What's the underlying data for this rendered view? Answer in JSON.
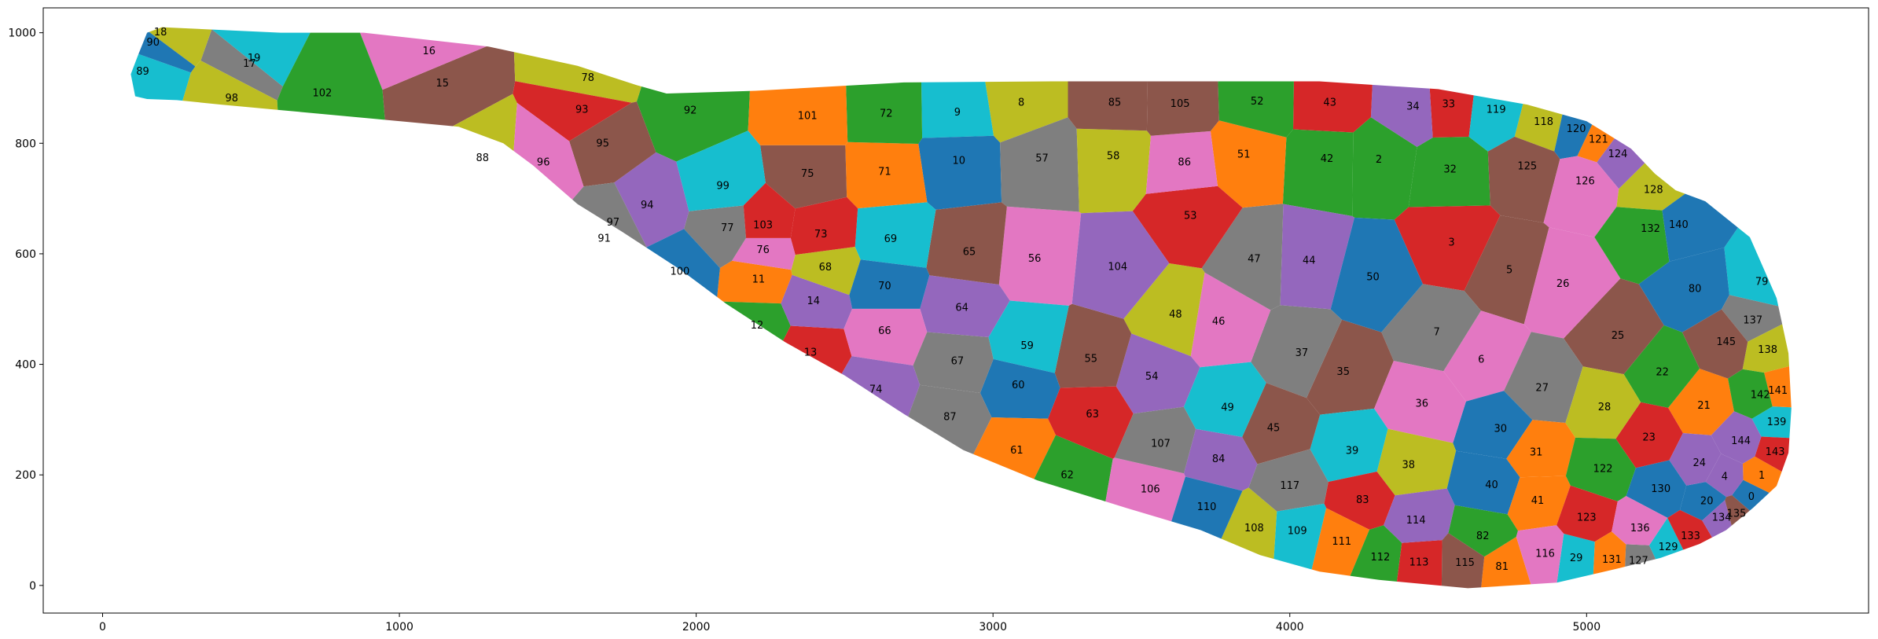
{
  "chart_data": {
    "type": "segmentation",
    "title": "",
    "xlabel": "",
    "ylabel": "",
    "xlim": [
      -200,
      5950
    ],
    "ylim": [
      -50,
      1045
    ],
    "xticks": [
      0,
      1000,
      2000,
      3000,
      4000,
      5000
    ],
    "yticks": [
      0,
      200,
      400,
      600,
      800,
      1000
    ],
    "grid": false,
    "legend": "none",
    "palette": [
      "#1f77b4",
      "#ff7f0e",
      "#2ca02c",
      "#d62728",
      "#9467bd",
      "#8c564b",
      "#e377c2",
      "#7f7f7f",
      "#bcbd22",
      "#17becf"
    ],
    "segments": [
      {
        "label": "0",
        "x": 5555,
        "y": 160
      },
      {
        "label": "1",
        "x": 5590,
        "y": 198
      },
      {
        "label": "2",
        "x": 4300,
        "y": 770
      },
      {
        "label": "3",
        "x": 4545,
        "y": 620
      },
      {
        "label": "4",
        "x": 5465,
        "y": 196
      },
      {
        "label": "5",
        "x": 4740,
        "y": 570
      },
      {
        "label": "6",
        "x": 4645,
        "y": 408
      },
      {
        "label": "7",
        "x": 4495,
        "y": 458
      },
      {
        "label": "8",
        "x": 3095,
        "y": 873
      },
      {
        "label": "9",
        "x": 2880,
        "y": 855
      },
      {
        "label": "10",
        "x": 2885,
        "y": 768
      },
      {
        "label": "11",
        "x": 2210,
        "y": 553
      },
      {
        "label": "12",
        "x": 2205,
        "y": 470
      },
      {
        "label": "13",
        "x": 2385,
        "y": 421
      },
      {
        "label": "14",
        "x": 2395,
        "y": 514
      },
      {
        "label": "15",
        "x": 1145,
        "y": 908
      },
      {
        "label": "16",
        "x": 1100,
        "y": 966
      },
      {
        "label": "17",
        "x": 495,
        "y": 943
      },
      {
        "label": "18",
        "x": 195,
        "y": 1000
      },
      {
        "label": "19",
        "x": 510,
        "y": 953
      },
      {
        "label": "20",
        "x": 5405,
        "y": 152
      },
      {
        "label": "21",
        "x": 5395,
        "y": 325
      },
      {
        "label": "22",
        "x": 5255,
        "y": 385
      },
      {
        "label": "23",
        "x": 5210,
        "y": 267
      },
      {
        "label": "24",
        "x": 5380,
        "y": 221
      },
      {
        "label": "25",
        "x": 5105,
        "y": 451
      },
      {
        "label": "26",
        "x": 4920,
        "y": 545
      },
      {
        "label": "27",
        "x": 4850,
        "y": 357
      },
      {
        "label": "28",
        "x": 5060,
        "y": 322
      },
      {
        "label": "29",
        "x": 4965,
        "y": 49
      },
      {
        "label": "30",
        "x": 4710,
        "y": 283
      },
      {
        "label": "31",
        "x": 4830,
        "y": 240
      },
      {
        "label": "32",
        "x": 4540,
        "y": 752
      },
      {
        "label": "33",
        "x": 4535,
        "y": 870
      },
      {
        "label": "34",
        "x": 4415,
        "y": 866
      },
      {
        "label": "35",
        "x": 4180,
        "y": 386
      },
      {
        "label": "36",
        "x": 4445,
        "y": 328
      },
      {
        "label": "37",
        "x": 4040,
        "y": 420
      },
      {
        "label": "38",
        "x": 4400,
        "y": 217
      },
      {
        "label": "39",
        "x": 4210,
        "y": 243
      },
      {
        "label": "40",
        "x": 4680,
        "y": 181
      },
      {
        "label": "41",
        "x": 4835,
        "y": 153
      },
      {
        "label": "42",
        "x": 4125,
        "y": 771
      },
      {
        "label": "43",
        "x": 4135,
        "y": 873
      },
      {
        "label": "44",
        "x": 4065,
        "y": 587
      },
      {
        "label": "45",
        "x": 3945,
        "y": 284
      },
      {
        "label": "46",
        "x": 3760,
        "y": 477
      },
      {
        "label": "47",
        "x": 3880,
        "y": 590
      },
      {
        "label": "48",
        "x": 3615,
        "y": 490
      },
      {
        "label": "49",
        "x": 3790,
        "y": 321
      },
      {
        "label": "50",
        "x": 4280,
        "y": 557
      },
      {
        "label": "51",
        "x": 3845,
        "y": 779
      },
      {
        "label": "52",
        "x": 3890,
        "y": 875
      },
      {
        "label": "53",
        "x": 3665,
        "y": 668
      },
      {
        "label": "54",
        "x": 3535,
        "y": 377
      },
      {
        "label": "55",
        "x": 3330,
        "y": 409
      },
      {
        "label": "56",
        "x": 3140,
        "y": 591
      },
      {
        "label": "57",
        "x": 3165,
        "y": 772
      },
      {
        "label": "58",
        "x": 3405,
        "y": 776
      },
      {
        "label": "59",
        "x": 3115,
        "y": 433
      },
      {
        "label": "60",
        "x": 3085,
        "y": 362
      },
      {
        "label": "61",
        "x": 3080,
        "y": 244
      },
      {
        "label": "62",
        "x": 3250,
        "y": 199
      },
      {
        "label": "63",
        "x": 3335,
        "y": 309
      },
      {
        "label": "64",
        "x": 2895,
        "y": 502
      },
      {
        "label": "65",
        "x": 2920,
        "y": 603
      },
      {
        "label": "66",
        "x": 2635,
        "y": 460
      },
      {
        "label": "67",
        "x": 2880,
        "y": 405
      },
      {
        "label": "68",
        "x": 2435,
        "y": 575
      },
      {
        "label": "69",
        "x": 2655,
        "y": 626
      },
      {
        "label": "70",
        "x": 2635,
        "y": 541
      },
      {
        "label": "71",
        "x": 2635,
        "y": 748
      },
      {
        "label": "72",
        "x": 2640,
        "y": 853
      },
      {
        "label": "73",
        "x": 2420,
        "y": 635
      },
      {
        "label": "74",
        "x": 2605,
        "y": 354
      },
      {
        "label": "75",
        "x": 2375,
        "y": 744
      },
      {
        "label": "76",
        "x": 2225,
        "y": 606
      },
      {
        "label": "77",
        "x": 2105,
        "y": 646
      },
      {
        "label": "78",
        "x": 1635,
        "y": 918
      },
      {
        "label": "79",
        "x": 5590,
        "y": 549
      },
      {
        "label": "80",
        "x": 5365,
        "y": 536
      },
      {
        "label": "81",
        "x": 4715,
        "y": 33
      },
      {
        "label": "82",
        "x": 4650,
        "y": 89
      },
      {
        "label": "83",
        "x": 4245,
        "y": 154
      },
      {
        "label": "84",
        "x": 3760,
        "y": 228
      },
      {
        "label": "85",
        "x": 3410,
        "y": 873
      },
      {
        "label": "86",
        "x": 3645,
        "y": 765
      },
      {
        "label": "87",
        "x": 2855,
        "y": 304
      },
      {
        "label": "88",
        "x": 1280,
        "y": 773
      },
      {
        "label": "89",
        "x": 135,
        "y": 929
      },
      {
        "label": "90",
        "x": 170,
        "y": 982
      },
      {
        "label": "91",
        "x": 1690,
        "y": 627
      },
      {
        "label": "92",
        "x": 1980,
        "y": 859
      },
      {
        "label": "93",
        "x": 1615,
        "y": 860
      },
      {
        "label": "94",
        "x": 1835,
        "y": 687
      },
      {
        "label": "95",
        "x": 1685,
        "y": 799
      },
      {
        "label": "96",
        "x": 1485,
        "y": 765
      },
      {
        "label": "97",
        "x": 1720,
        "y": 656
      },
      {
        "label": "98",
        "x": 435,
        "y": 881
      },
      {
        "label": "99",
        "x": 2090,
        "y": 722
      },
      {
        "label": "100",
        "x": 1945,
        "y": 567
      },
      {
        "label": "101",
        "x": 2375,
        "y": 849
      },
      {
        "label": "102",
        "x": 740,
        "y": 890
      },
      {
        "label": "103",
        "x": 2225,
        "y": 651
      },
      {
        "label": "104",
        "x": 3420,
        "y": 576
      },
      {
        "label": "105",
        "x": 3630,
        "y": 871
      },
      {
        "label": "106",
        "x": 3530,
        "y": 173
      },
      {
        "label": "107",
        "x": 3565,
        "y": 256
      },
      {
        "label": "108",
        "x": 3880,
        "y": 103
      },
      {
        "label": "109",
        "x": 4025,
        "y": 98
      },
      {
        "label": "110",
        "x": 3720,
        "y": 141
      },
      {
        "label": "111",
        "x": 4175,
        "y": 79
      },
      {
        "label": "112",
        "x": 4305,
        "y": 50
      },
      {
        "label": "113",
        "x": 4435,
        "y": 41
      },
      {
        "label": "114",
        "x": 4425,
        "y": 117
      },
      {
        "label": "115",
        "x": 4590,
        "y": 40
      },
      {
        "label": "116",
        "x": 4860,
        "y": 57
      },
      {
        "label": "117",
        "x": 4000,
        "y": 180
      },
      {
        "label": "118",
        "x": 4855,
        "y": 838
      },
      {
        "label": "119",
        "x": 4695,
        "y": 860
      },
      {
        "label": "120",
        "x": 4965,
        "y": 825
      },
      {
        "label": "121",
        "x": 5040,
        "y": 806
      },
      {
        "label": "122",
        "x": 5055,
        "y": 210
      },
      {
        "label": "123",
        "x": 5000,
        "y": 122
      },
      {
        "label": "124",
        "x": 5105,
        "y": 780
      },
      {
        "label": "125",
        "x": 4800,
        "y": 758
      },
      {
        "label": "126",
        "x": 4995,
        "y": 731
      },
      {
        "label": "127",
        "x": 5175,
        "y": 44
      },
      {
        "label": "128",
        "x": 5225,
        "y": 715
      },
      {
        "label": "129",
        "x": 5275,
        "y": 69
      },
      {
        "label": "130",
        "x": 5250,
        "y": 174
      },
      {
        "label": "131",
        "x": 5085,
        "y": 46
      },
      {
        "label": "132",
        "x": 5215,
        "y": 645
      },
      {
        "label": "133",
        "x": 5350,
        "y": 89
      },
      {
        "label": "134",
        "x": 5455,
        "y": 122
      },
      {
        "label": "135",
        "x": 5505,
        "y": 129
      },
      {
        "label": "136",
        "x": 5180,
        "y": 103
      },
      {
        "label": "137",
        "x": 5560,
        "y": 479
      },
      {
        "label": "138",
        "x": 5610,
        "y": 426
      },
      {
        "label": "139",
        "x": 5640,
        "y": 295
      },
      {
        "label": "140",
        "x": 5310,
        "y": 652
      },
      {
        "label": "141",
        "x": 5645,
        "y": 352
      },
      {
        "label": "142",
        "x": 5585,
        "y": 344
      },
      {
        "label": "143",
        "x": 5635,
        "y": 241
      },
      {
        "label": "144",
        "x": 5520,
        "y": 261
      },
      {
        "label": "145",
        "x": 5470,
        "y": 440
      }
    ]
  }
}
